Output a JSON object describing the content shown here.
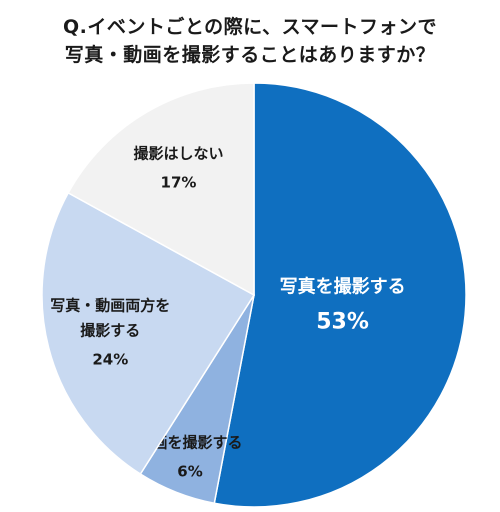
{
  "chart_data": {
    "type": "pie",
    "title_lines": [
      "Q.イベントごとの際に、スマートフォンで",
      "写真・動画を撮影することはありますか？"
    ],
    "slices": [
      {
        "label_lines": [
          "写真を撮影する"
        ],
        "value": 53,
        "value_label": "53%",
        "color": "#0f6fc0",
        "text_color": "#ffffff"
      },
      {
        "label_lines": [
          "動画を撮影する"
        ],
        "value": 6,
        "value_label": "6%",
        "color": "#8fb2e0",
        "text_color": "#1a1a1a"
      },
      {
        "label_lines": [
          "写真・動画両方を",
          "撮影する"
        ],
        "value": 24,
        "value_label": "24%",
        "color": "#c8d9f1",
        "text_color": "#1a1a1a"
      },
      {
        "label_lines": [
          "撮影はしない"
        ],
        "value": 17,
        "value_label": "17%",
        "color": "#f2f2f2",
        "text_color": "#1a1a1a"
      }
    ]
  }
}
